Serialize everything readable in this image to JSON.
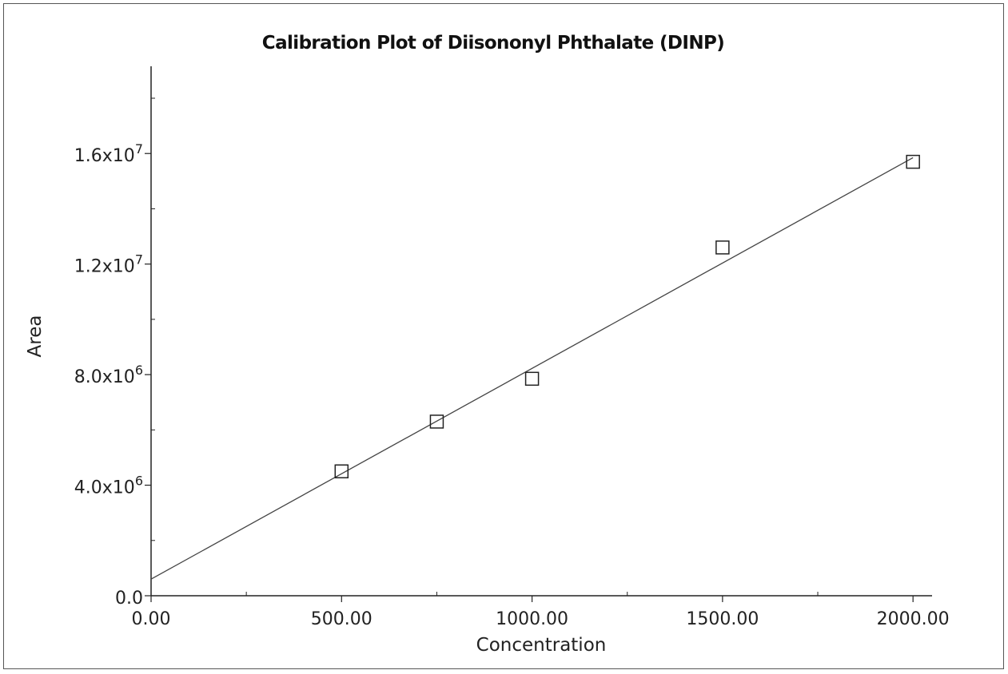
{
  "chart_data": {
    "type": "scatter",
    "title": "Calibration Plot of Diisononyl Phthalate (DINP)",
    "xlabel": "Concentration",
    "ylabel": "Area",
    "xlim": [
      0,
      2050
    ],
    "ylim": [
      0,
      18000000
    ],
    "x_ticks": [
      {
        "value": 0,
        "label": "0.00"
      },
      {
        "value": 500,
        "label": "500.00"
      },
      {
        "value": 1000,
        "label": "1000.00"
      },
      {
        "value": 1500,
        "label": "1500.00"
      },
      {
        "value": 2000,
        "label": "2000.00"
      }
    ],
    "x_minor_ticks": [
      250,
      750,
      1250,
      1750
    ],
    "y_ticks": [
      {
        "value": 0,
        "label": "0.0",
        "exp": ""
      },
      {
        "value": 4000000,
        "label": "4.0x10",
        "exp": "6"
      },
      {
        "value": 8000000,
        "label": "8.0x10",
        "exp": "6"
      },
      {
        "value": 12000000,
        "label": "1.2x10",
        "exp": "7"
      },
      {
        "value": 16000000,
        "label": "1.6x10",
        "exp": "7"
      }
    ],
    "y_minor_ticks": [
      2000000,
      6000000,
      10000000,
      14000000,
      18000000
    ],
    "points": [
      {
        "x": 500,
        "y": 4500000
      },
      {
        "x": 750,
        "y": 6300000
      },
      {
        "x": 1000,
        "y": 7850000
      },
      {
        "x": 1500,
        "y": 12600000
      },
      {
        "x": 2000,
        "y": 15700000
      }
    ],
    "fit_line": {
      "intercept": 600000,
      "slope": 7625
    },
    "grid": false,
    "marker": "open-square",
    "colors": {
      "axis": "#222222",
      "line": "#444444",
      "marker": "#222222"
    }
  }
}
